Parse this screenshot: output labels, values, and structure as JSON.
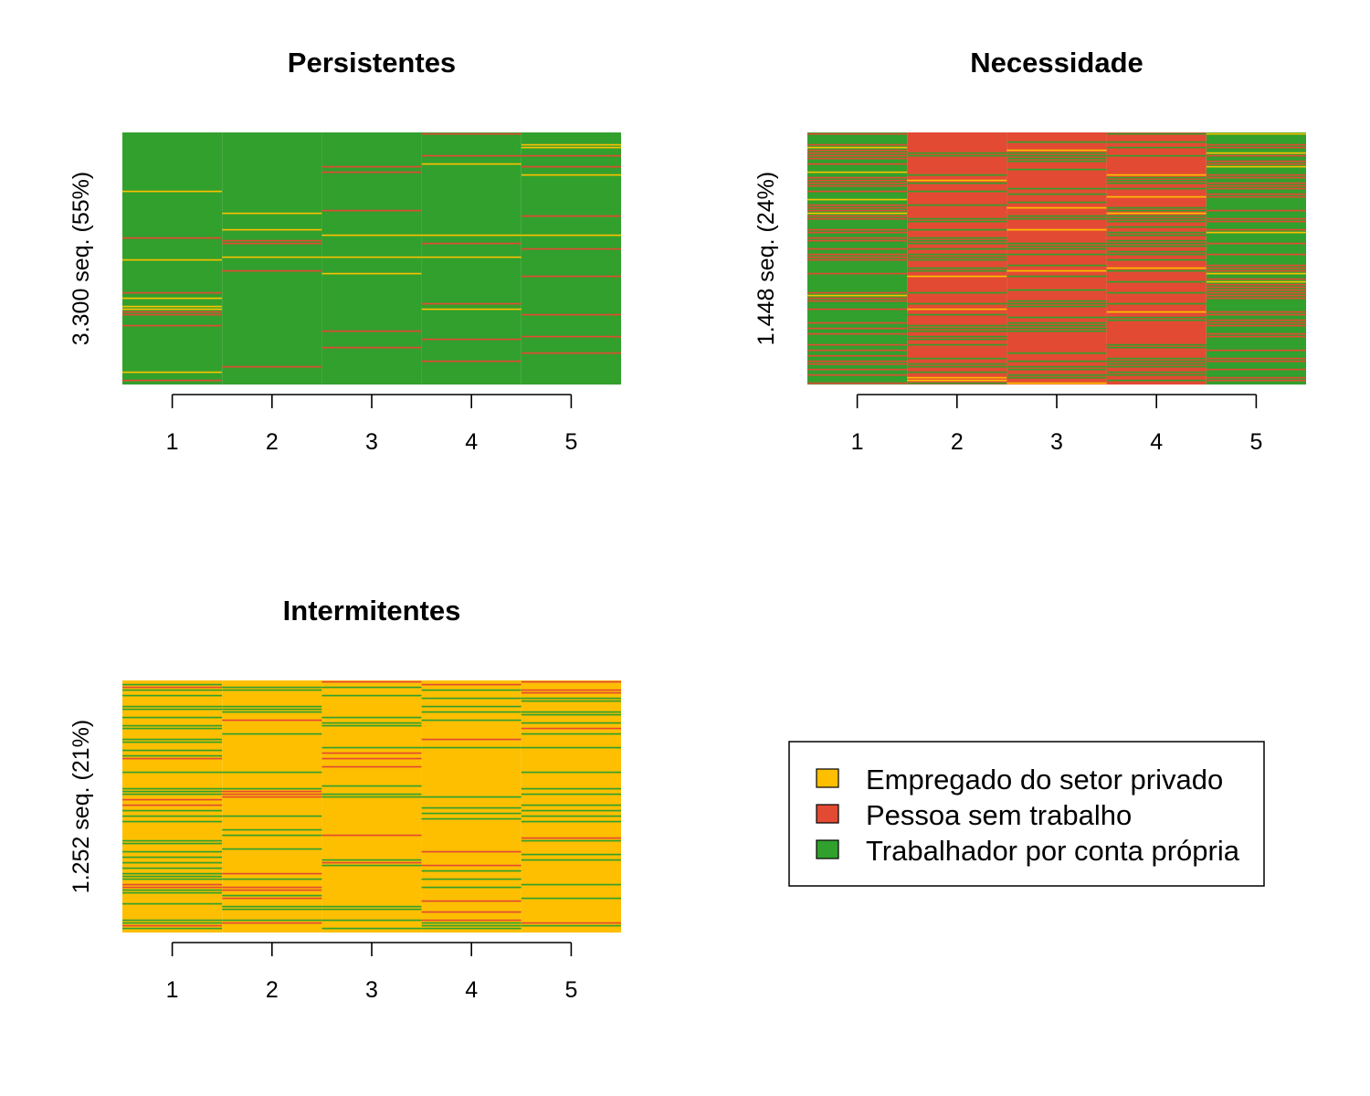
{
  "colors": {
    "Empregado do setor privado": "#FDBF00",
    "Pessoa sem trabalho": "#E34A33",
    "Trabalhador por conta própria": "#31A02C"
  },
  "chart_data": [
    {
      "type": "heatmap",
      "title": "Persistentes",
      "ylabel": "3.300 seq. (55%)",
      "categories": [
        "1",
        "2",
        "3",
        "4",
        "5"
      ],
      "sequences": 3300,
      "share_percent": 55,
      "state_shares": [
        {
          "state": "Empregado do setor privado",
          "values": [
            0.07,
            0.03,
            0.03,
            0.04,
            0.04
          ]
        },
        {
          "state": "Pessoa sem trabalho",
          "values": [
            0.07,
            0.04,
            0.05,
            0.06,
            0.09
          ]
        },
        {
          "state": "Trabalhador por conta própria",
          "values": [
            0.86,
            0.93,
            0.92,
            0.9,
            0.87
          ]
        }
      ]
    },
    {
      "type": "heatmap",
      "title": "Necessidade",
      "ylabel": "1.448 seq. (24%)",
      "categories": [
        "1",
        "2",
        "3",
        "4",
        "5"
      ],
      "sequences": 1448,
      "share_percent": 24,
      "state_shares": [
        {
          "state": "Empregado do setor privado",
          "values": [
            0.05,
            0.05,
            0.05,
            0.05,
            0.06
          ]
        },
        {
          "state": "Pessoa sem trabalho",
          "values": [
            0.45,
            0.6,
            0.6,
            0.55,
            0.45
          ]
        },
        {
          "state": "Trabalhador por conta própria",
          "values": [
            0.5,
            0.35,
            0.35,
            0.4,
            0.49
          ]
        }
      ]
    },
    {
      "type": "heatmap",
      "title": "Intermitentes",
      "ylabel": "1.252 seq. (21%)",
      "categories": [
        "1",
        "2",
        "3",
        "4",
        "5"
      ],
      "sequences": 1252,
      "share_percent": 21,
      "state_shares": [
        {
          "state": "Empregado do setor privado",
          "values": [
            0.55,
            0.72,
            0.78,
            0.75,
            0.72
          ]
        },
        {
          "state": "Pessoa sem trabalho",
          "values": [
            0.08,
            0.1,
            0.06,
            0.08,
            0.06
          ]
        },
        {
          "state": "Trabalhador por conta própria",
          "values": [
            0.37,
            0.18,
            0.16,
            0.17,
            0.22
          ]
        }
      ]
    }
  ],
  "legend": {
    "items": [
      {
        "label": "Empregado do setor privado",
        "color": "#FDBF00"
      },
      {
        "label": "Pessoa sem trabalho",
        "color": "#E34A33"
      },
      {
        "label": "Trabalhador por conta própria",
        "color": "#31A02C"
      }
    ]
  }
}
